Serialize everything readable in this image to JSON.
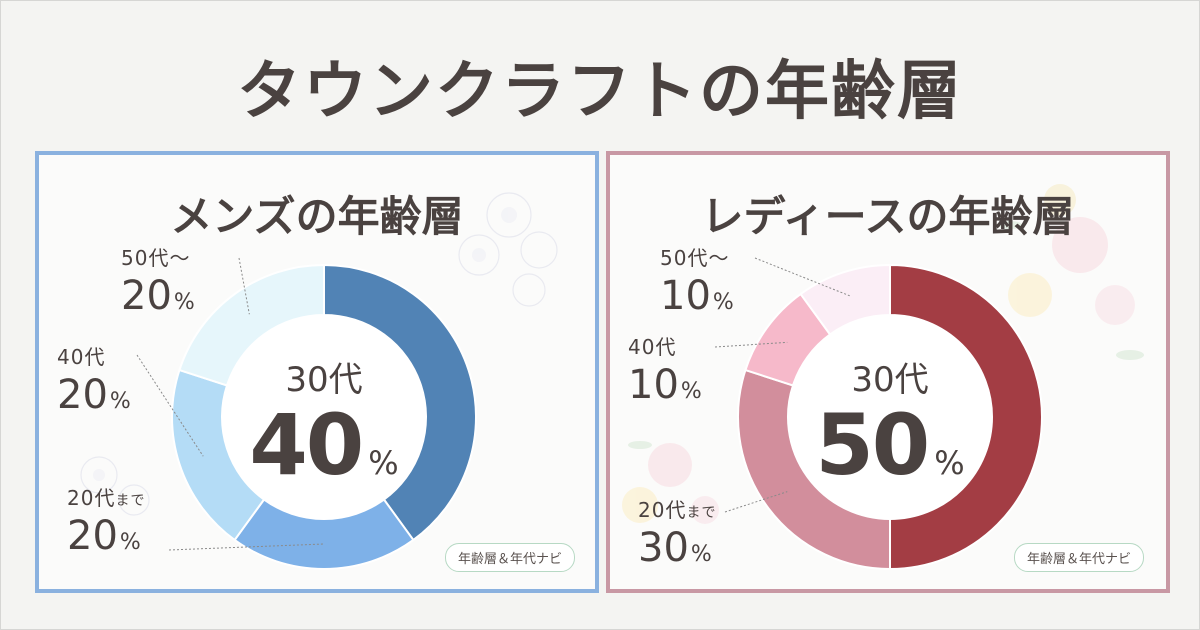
{
  "title": "タウンクラフトの年齢層",
  "unit": "%",
  "tag_text": "年齢層＆年代ナビ",
  "men": {
    "title": "メンズの年齢層",
    "center_label": "30代",
    "center_value": "40",
    "labels": [
      {
        "age": "50代〜",
        "pct": "20"
      },
      {
        "age": "40代",
        "pct": "20"
      },
      {
        "age": "20代",
        "suffix": "まで",
        "pct": "20"
      }
    ]
  },
  "women": {
    "title": "レディースの年齢層",
    "center_label": "30代",
    "center_value": "50",
    "labels": [
      {
        "age": "50代〜",
        "pct": "10"
      },
      {
        "age": "40代",
        "pct": "10"
      },
      {
        "age": "20代",
        "suffix": "まで",
        "pct": "30"
      }
    ]
  },
  "chart_data": [
    {
      "type": "pie",
      "title": "メンズの年齢層",
      "categories": [
        "30代",
        "20代まで",
        "40代",
        "50代〜"
      ],
      "values": [
        40,
        20,
        20,
        20
      ],
      "colors": [
        "#5183b5",
        "#7eb1e8",
        "#b4dcf6",
        "#e6f6fb"
      ],
      "donut": true
    },
    {
      "type": "pie",
      "title": "レディースの年齢層",
      "categories": [
        "30代",
        "20代まで",
        "40代",
        "50代〜"
      ],
      "values": [
        50,
        30,
        10,
        10
      ],
      "colors": [
        "#a33d44",
        "#d28e9c",
        "#f6b9ca",
        "#fbeef6"
      ],
      "donut": true
    }
  ]
}
